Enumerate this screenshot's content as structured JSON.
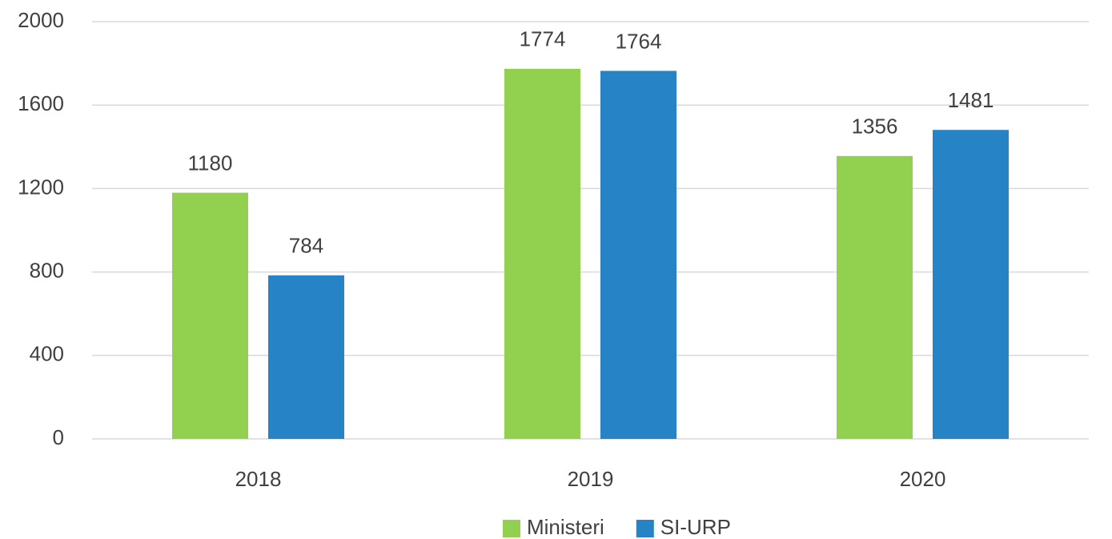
{
  "chart_data": {
    "type": "bar",
    "categories": [
      "2018",
      "2019",
      "2020"
    ],
    "series": [
      {
        "name": "Ministeri",
        "color": "#92d050",
        "values": [
          1180,
          1774,
          1356
        ]
      },
      {
        "name": "SI-URP",
        "color": "#2683c6",
        "values": [
          784,
          1764,
          1481
        ]
      }
    ],
    "ylim": [
      0,
      2000
    ],
    "yticks": [
      0,
      400,
      800,
      1200,
      1600,
      2000
    ],
    "grid": true,
    "legend": "bottom"
  }
}
